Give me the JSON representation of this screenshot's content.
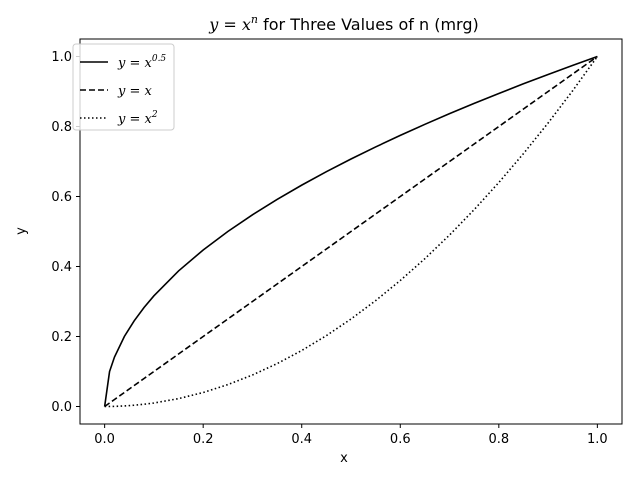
{
  "chart_data": {
    "type": "line",
    "title": {
      "formula_base": "y = x",
      "formula_exp": "n",
      "rest": " for Three Values of n (mrg)"
    },
    "xlabel": "x",
    "ylabel": "y",
    "xlim": [
      -0.05,
      1.05
    ],
    "ylim": [
      -0.05,
      1.05
    ],
    "xticks": [
      0.0,
      0.2,
      0.4,
      0.6,
      0.8,
      1.0
    ],
    "yticks": [
      0.0,
      0.2,
      0.4,
      0.6,
      0.8,
      1.0
    ],
    "xtick_labels": [
      "0.0",
      "0.2",
      "0.4",
      "0.6",
      "0.8",
      "1.0"
    ],
    "ytick_labels": [
      "0.0",
      "0.2",
      "0.4",
      "0.6",
      "0.8",
      "1.0"
    ],
    "grid": false,
    "legend_position": "upper-left",
    "x": [
      0,
      0.01,
      0.02,
      0.04,
      0.06,
      0.08,
      0.1,
      0.15,
      0.2,
      0.25,
      0.3,
      0.35,
      0.4,
      0.45,
      0.5,
      0.55,
      0.6,
      0.65,
      0.7,
      0.75,
      0.8,
      0.85,
      0.9,
      0.95,
      1.0
    ],
    "series": [
      {
        "name_base": "y = x",
        "name_exp": "0.5",
        "style": "solid",
        "color": "#000000",
        "values": [
          0,
          0.1,
          0.1414,
          0.2,
          0.2449,
          0.2828,
          0.3162,
          0.3873,
          0.4472,
          0.5,
          0.5477,
          0.5916,
          0.6325,
          0.6708,
          0.7071,
          0.7416,
          0.7746,
          0.8062,
          0.8367,
          0.866,
          0.8944,
          0.922,
          0.9487,
          0.9747,
          1.0
        ]
      },
      {
        "name_base": "y = x",
        "name_exp": "",
        "style": "dashed",
        "color": "#000000",
        "values": [
          0,
          0.01,
          0.02,
          0.04,
          0.06,
          0.08,
          0.1,
          0.15,
          0.2,
          0.25,
          0.3,
          0.35,
          0.4,
          0.45,
          0.5,
          0.55,
          0.6,
          0.65,
          0.7,
          0.75,
          0.8,
          0.85,
          0.9,
          0.95,
          1.0
        ]
      },
      {
        "name_base": "y = x",
        "name_exp": "2",
        "style": "dotted",
        "color": "#000000",
        "values": [
          0,
          0.0001,
          0.0004,
          0.0016,
          0.0036,
          0.0064,
          0.01,
          0.0225,
          0.04,
          0.0625,
          0.09,
          0.1225,
          0.16,
          0.2025,
          0.25,
          0.3025,
          0.36,
          0.4225,
          0.49,
          0.5625,
          0.64,
          0.7225,
          0.81,
          0.9025,
          1.0
        ]
      }
    ]
  }
}
